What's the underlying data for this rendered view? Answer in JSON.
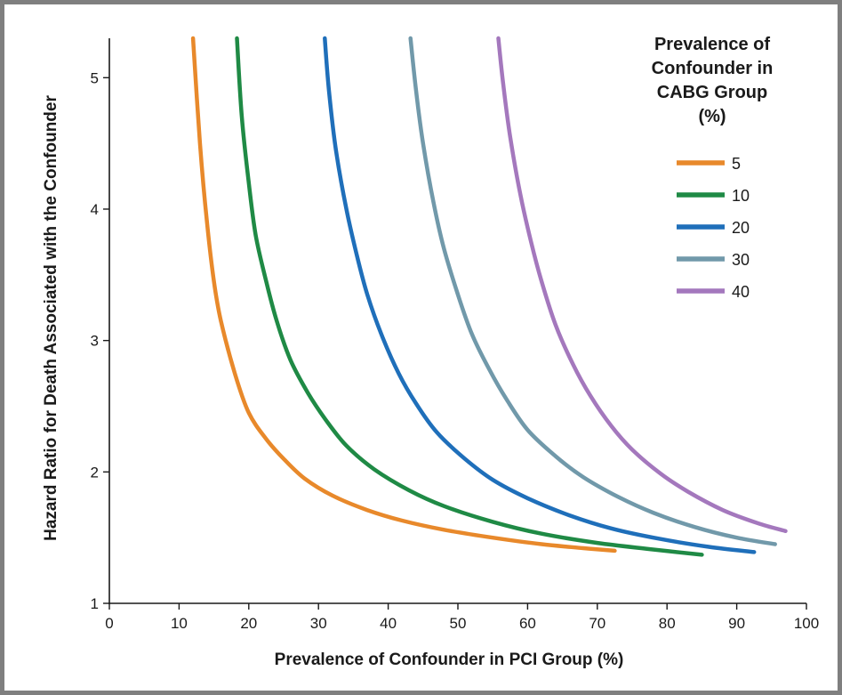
{
  "chart_data": {
    "type": "line",
    "xlabel": "Prevalence of Confounder in PCI Group (%)",
    "ylabel": "Hazard Ratio for Death Associated with the Confounder",
    "xlim": [
      0,
      100
    ],
    "ylim": [
      1,
      5.3
    ],
    "x_ticks": [
      "0",
      "10",
      "20",
      "30",
      "40",
      "50",
      "60",
      "70",
      "80",
      "90",
      "100"
    ],
    "y_ticks": [
      "1",
      "2",
      "3",
      "4",
      "5"
    ],
    "grid": false,
    "legend": {
      "title_lines": [
        "Prevalence of",
        "Confounder in",
        "CABG Group",
        "(%)"
      ],
      "placement": "top-right"
    },
    "series": [
      {
        "name": "5",
        "color": "#e8892b",
        "x": [
          12.0,
          13.0,
          14.0,
          15.0,
          16.0,
          18.0,
          20.0,
          22.5,
          25.0,
          28.0,
          32.0,
          37.0,
          42.0,
          48.0,
          55.0,
          62.0,
          68.0,
          72.5
        ],
        "y": [
          5.3,
          4.5,
          3.9,
          3.45,
          3.15,
          2.75,
          2.45,
          2.25,
          2.1,
          1.95,
          1.82,
          1.71,
          1.63,
          1.56,
          1.5,
          1.45,
          1.42,
          1.4
        ]
      },
      {
        "name": "10",
        "color": "#1f8a45",
        "x": [
          18.3,
          19.0,
          20.0,
          21.0,
          22.5,
          24.0,
          26.0,
          28.5,
          31.0,
          34.0,
          38.0,
          43.0,
          48.0,
          55.0,
          62.0,
          70.0,
          78.0,
          85.0
        ],
        "y": [
          5.3,
          4.7,
          4.2,
          3.8,
          3.45,
          3.15,
          2.85,
          2.6,
          2.4,
          2.2,
          2.02,
          1.86,
          1.74,
          1.62,
          1.53,
          1.46,
          1.41,
          1.37
        ]
      },
      {
        "name": "20",
        "color": "#1f6fba",
        "x": [
          30.9,
          31.5,
          32.5,
          34.0,
          35.5,
          37.0,
          39.0,
          41.5,
          44.0,
          47.0,
          51.0,
          55.0,
          60.0,
          66.0,
          72.0,
          79.0,
          86.0,
          92.5
        ],
        "y": [
          5.3,
          4.9,
          4.45,
          4.0,
          3.65,
          3.35,
          3.05,
          2.75,
          2.52,
          2.3,
          2.1,
          1.94,
          1.8,
          1.67,
          1.57,
          1.49,
          1.43,
          1.39
        ]
      },
      {
        "name": "30",
        "color": "#7199aa",
        "x": [
          43.2,
          44.0,
          45.0,
          46.5,
          48.0,
          50.0,
          52.0,
          54.5,
          57.0,
          60.0,
          64.0,
          68.0,
          73.0,
          78.0,
          84.0,
          90.0,
          95.5
        ],
        "y": [
          5.3,
          4.9,
          4.5,
          4.05,
          3.7,
          3.35,
          3.05,
          2.78,
          2.55,
          2.32,
          2.12,
          1.96,
          1.81,
          1.69,
          1.58,
          1.5,
          1.45
        ]
      },
      {
        "name": "40",
        "color": "#a478bd",
        "x": [
          55.8,
          56.5,
          57.5,
          59.0,
          60.5,
          62.0,
          64.0,
          66.5,
          69.0,
          72.0,
          75.0,
          79.0,
          83.0,
          88.0,
          93.0,
          97.0
        ],
        "y": [
          5.3,
          4.95,
          4.55,
          4.1,
          3.75,
          3.45,
          3.12,
          2.82,
          2.58,
          2.35,
          2.17,
          1.99,
          1.85,
          1.71,
          1.61,
          1.55
        ]
      }
    ]
  }
}
